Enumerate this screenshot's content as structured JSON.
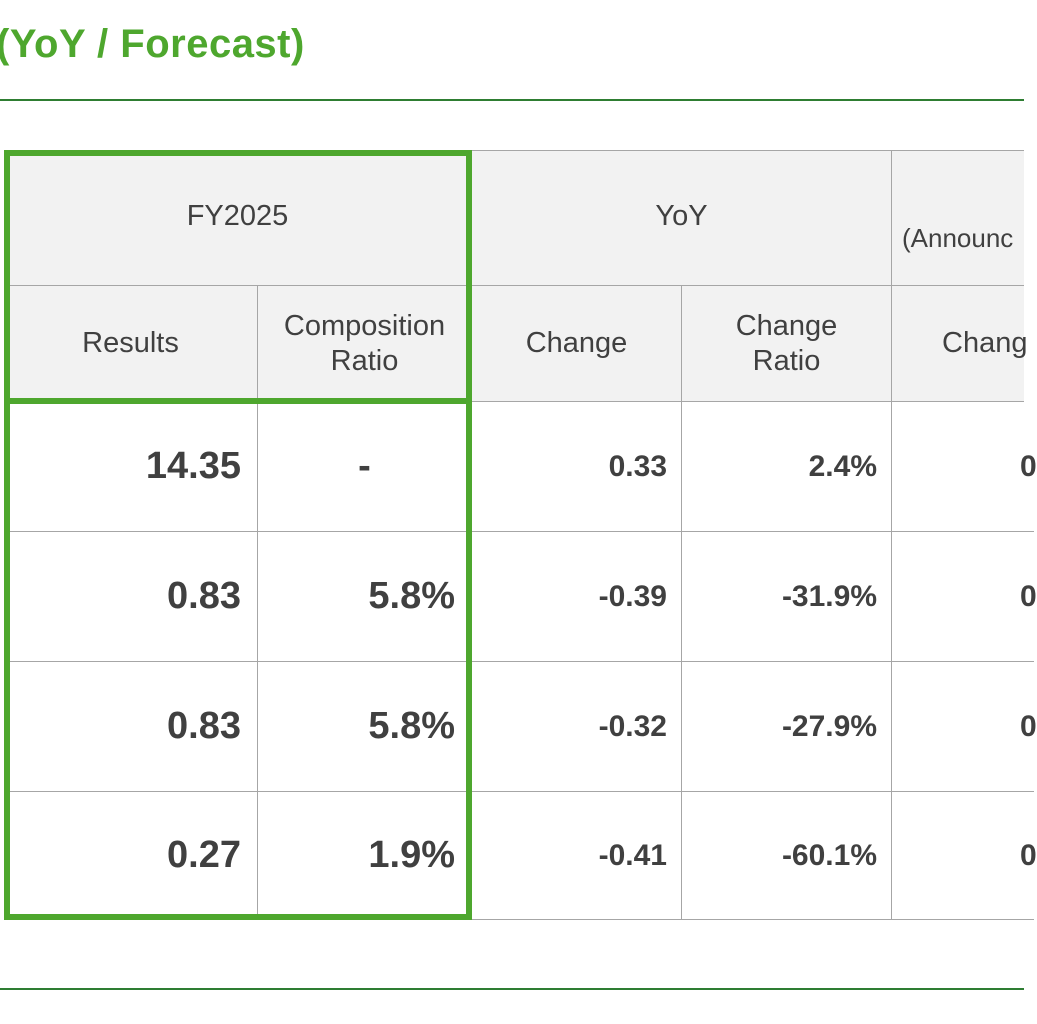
{
  "title": "(YoY / Forecast)",
  "table": {
    "group_headers": {
      "fy": "FY2025",
      "yoy": "YoY",
      "forecast": "(Announc"
    },
    "sub_headers": {
      "results": "Results",
      "composition_ratio": "Composition Ratio",
      "yoy_change": "Change",
      "yoy_change_ratio": "Change Ratio",
      "forecast_change": "Chang"
    },
    "rows": [
      {
        "results": "14.35",
        "composition_ratio": "-",
        "change": "0.33",
        "change_ratio": "2.4%",
        "forecast_change": "0"
      },
      {
        "results": "0.83",
        "composition_ratio": "5.8%",
        "change": "-0.39",
        "change_ratio": "-31.9%",
        "forecast_change": "0"
      },
      {
        "results": "0.83",
        "composition_ratio": "5.8%",
        "change": "-0.32",
        "change_ratio": "-27.9%",
        "forecast_change": "0"
      },
      {
        "results": "0.27",
        "composition_ratio": "1.9%",
        "change": "-0.41",
        "change_ratio": "-60.1%",
        "forecast_change": "0"
      }
    ]
  },
  "colors": {
    "accent_green": "#4ea72e",
    "rule_green": "#2e7d32",
    "header_bg": "#f2f2f2",
    "grid": "#a6a6a6",
    "text": "#404040"
  }
}
